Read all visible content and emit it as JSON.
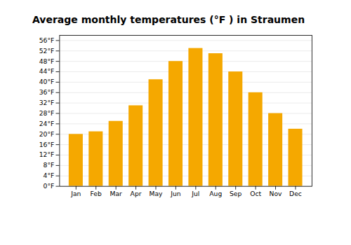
{
  "chart_data": {
    "type": "bar",
    "title": "Average monthly temperatures (°F ) in Straumen",
    "categories": [
      "Jan",
      "Feb",
      "Mar",
      "Apr",
      "May",
      "Jun",
      "Jul",
      "Aug",
      "Sep",
      "Oct",
      "Nov",
      "Dec"
    ],
    "values": [
      20,
      21,
      25,
      31,
      41,
      48,
      53,
      51,
      44,
      36,
      28,
      22
    ],
    "color": "#F5A800",
    "ylim": [
      0,
      58
    ],
    "yticks": [
      {
        "value": 0,
        "label": "0°F"
      },
      {
        "value": 4,
        "label": "4°F"
      },
      {
        "value": 8,
        "label": "8°F"
      },
      {
        "value": 12,
        "label": "12°F"
      },
      {
        "value": 16,
        "label": "16°F"
      },
      {
        "value": 20,
        "label": "20°F"
      },
      {
        "value": 24,
        "label": "24°F"
      },
      {
        "value": 28,
        "label": "28°F"
      },
      {
        "value": 32,
        "label": "32°F"
      },
      {
        "value": 36,
        "label": "36°F"
      },
      {
        "value": 40,
        "label": "40°F"
      },
      {
        "value": 44,
        "label": "44°F"
      },
      {
        "value": 48,
        "label": "48°F"
      },
      {
        "value": 52,
        "label": "52°F"
      },
      {
        "value": 56,
        "label": "56°F"
      }
    ],
    "grid": true
  }
}
